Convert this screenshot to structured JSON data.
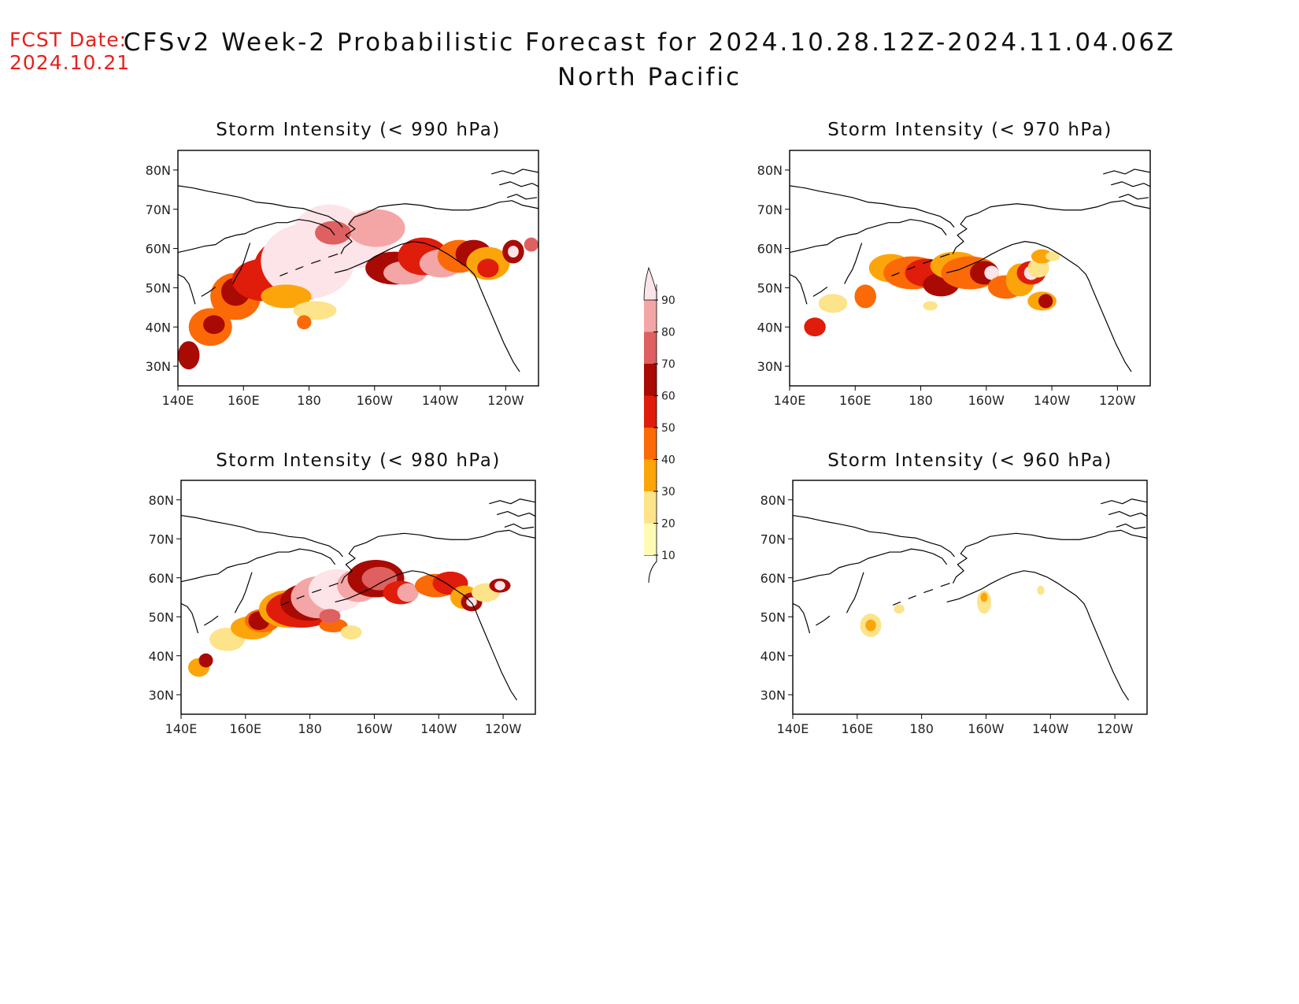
{
  "header": {
    "fcst_label": "FCST Date:",
    "fcst_date": "2024.10.21",
    "title_line1": "CFSv2 Week-2 Probabilistic Forecast for 2024.10.28.12Z-2024.11.04.06Z",
    "title_line2": "North Pacific"
  },
  "panels": [
    {
      "title": "Storm Intensity (< 990 hPa)"
    },
    {
      "title": "Storm Intensity (< 970 hPa)"
    },
    {
      "title": "Storm Intensity (< 980 hPa)"
    },
    {
      "title": "Storm Intensity (< 960 hPa)"
    }
  ],
  "axes": {
    "lat_labels": [
      "30N",
      "40N",
      "50N",
      "60N",
      "70N",
      "80N"
    ],
    "lon_labels": [
      "140E",
      "160E",
      "180",
      "160W",
      "140W",
      "120W"
    ]
  },
  "colorbar": {
    "levels": [
      "10",
      "20",
      "30",
      "40",
      "50",
      "60",
      "70",
      "80",
      "90"
    ],
    "colors": [
      "#fffab4",
      "#fde38a",
      "#fca50a",
      "#fb6a06",
      "#e01c0a",
      "#a90a04",
      "#de6060",
      "#f4a6a6",
      "#fde4e8"
    ]
  }
}
